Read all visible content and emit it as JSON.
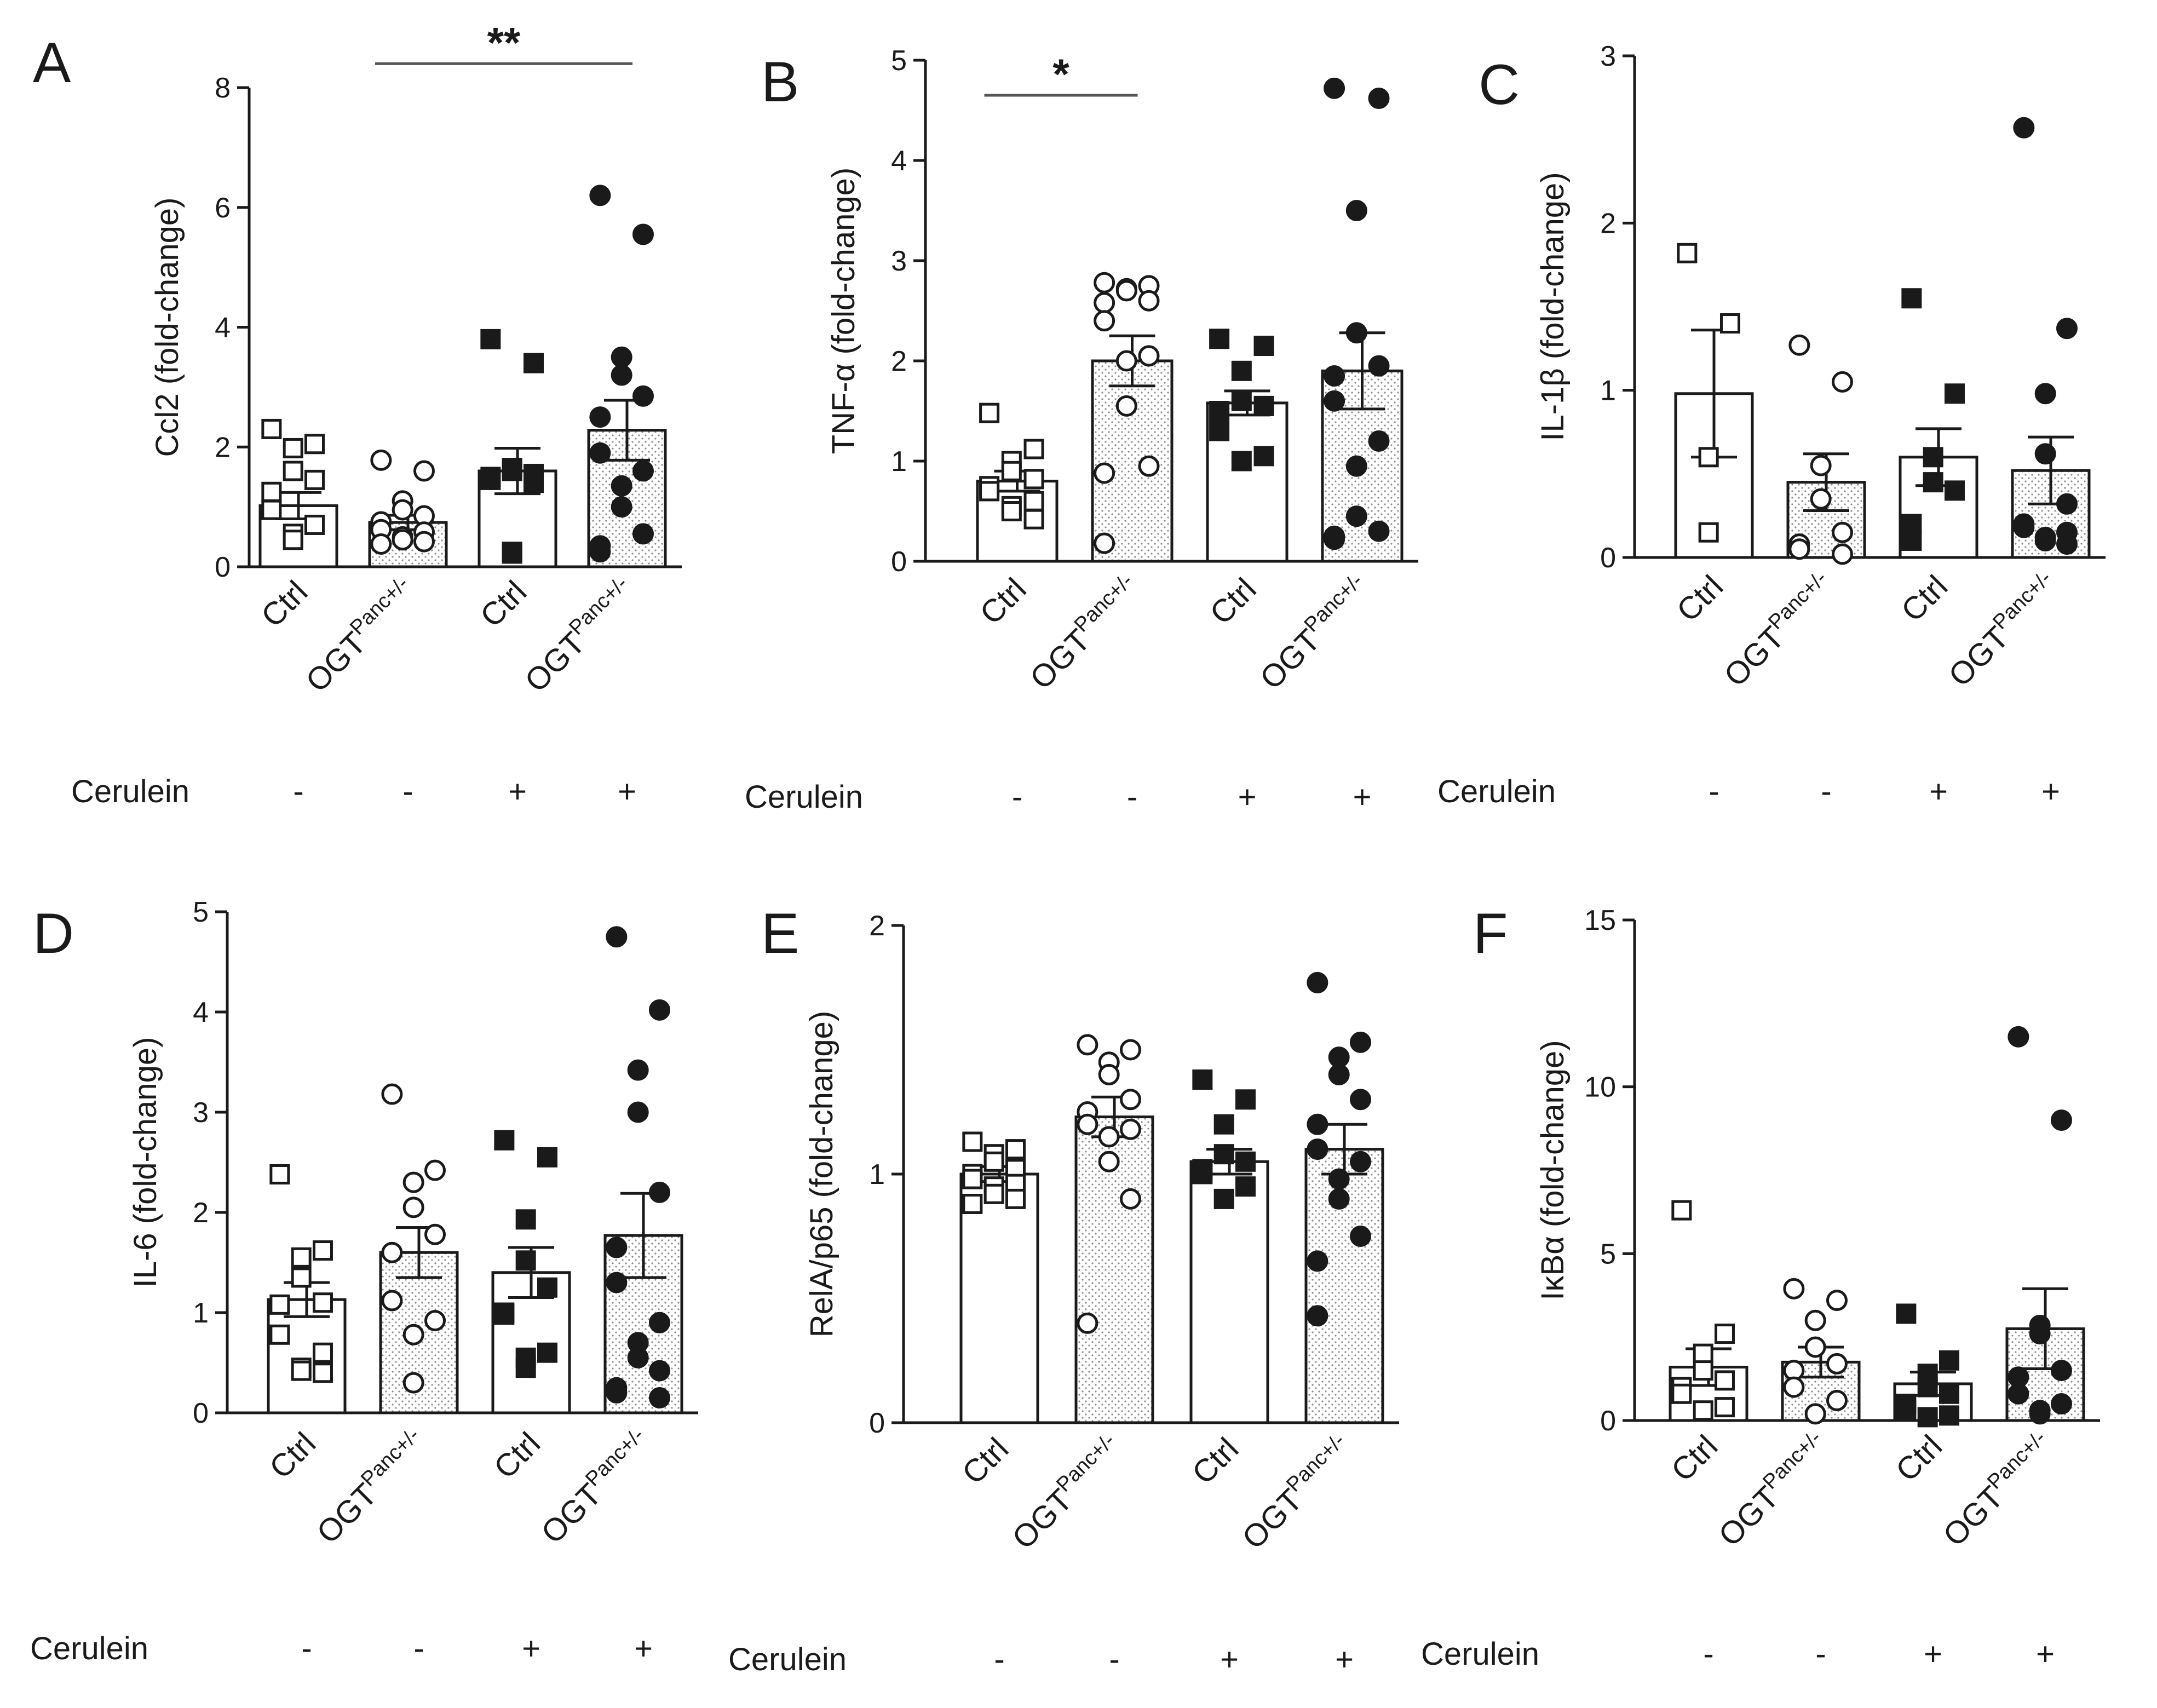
{
  "figure": {
    "cerulein_label": "Cerulein"
  },
  "colors": {
    "ink": "#1a1a1a",
    "bar_plain": "#ffffff",
    "bar_dotted": "#cfcfcf",
    "background": "#ffffff"
  },
  "chart_data": [
    {
      "id": "A",
      "type": "bar",
      "ylabel": "Ccl2 (fold-change)",
      "ylim": [
        0,
        8
      ],
      "yticks": [
        0,
        2,
        4,
        6,
        8
      ],
      "categories": [
        {
          "label": "Ctrl",
          "sup": "",
          "cerulein": "-"
        },
        {
          "label": "OGT",
          "sup": "Panc+/-",
          "cerulein": "-"
        },
        {
          "label": "Ctrl",
          "sup": "",
          "cerulein": "+"
        },
        {
          "label": "OGT",
          "sup": "Panc+/-",
          "cerulein": "+"
        }
      ],
      "values": [
        1.02,
        0.74,
        1.6,
        2.28
      ],
      "sem": [
        0.22,
        0.12,
        0.38,
        0.5
      ],
      "points": [
        [
          2.3,
          2.05,
          1.98,
          1.6,
          1.45,
          1.25,
          0.95,
          0.7,
          0.55,
          0.45
        ],
        [
          1.78,
          1.6,
          1.1,
          0.95,
          0.85,
          0.75,
          0.62,
          0.58,
          0.5,
          0.45,
          0.42,
          0.38
        ],
        [
          3.8,
          3.4,
          1.65,
          1.6,
          1.55,
          1.5,
          1.45,
          1.4,
          0.25,
          0.22
        ],
        [
          6.2,
          5.55,
          3.5,
          3.2,
          2.85,
          2.5,
          1.9,
          1.6,
          1.35,
          1.0,
          0.55,
          0.35,
          0.25
        ]
      ],
      "markers": [
        "square-open",
        "circle-open",
        "square-filled",
        "circle-filled"
      ],
      "significance": {
        "label": "**",
        "from": 1,
        "to": 3,
        "y": 8.4
      }
    },
    {
      "id": "B",
      "type": "bar",
      "ylabel": "TNF-α (fold-change)",
      "ylim": [
        0,
        5
      ],
      "yticks": [
        0,
        1,
        2,
        3,
        4,
        5
      ],
      "categories": [
        {
          "label": "Ctrl",
          "sup": "",
          "cerulein": "-"
        },
        {
          "label": "OGT",
          "sup": "Panc+/-",
          "cerulein": "-"
        },
        {
          "label": "Ctrl",
          "sup": "",
          "cerulein": "+"
        },
        {
          "label": "OGT",
          "sup": "Panc+/-",
          "cerulein": "+"
        }
      ],
      "values": [
        0.8,
        2.0,
        1.58,
        1.9
      ],
      "sem": [
        0.1,
        0.25,
        0.12,
        0.38
      ],
      "points": [
        [
          1.48,
          1.12,
          1.0,
          0.9,
          0.82,
          0.75,
          0.7,
          0.6,
          0.55,
          0.5,
          0.42
        ],
        [
          2.78,
          2.75,
          2.72,
          2.7,
          2.6,
          2.58,
          2.4,
          2.05,
          2.0,
          1.55,
          0.95,
          0.88,
          0.18
        ],
        [
          2.22,
          2.15,
          1.9,
          1.6,
          1.55,
          1.5,
          1.3,
          1.05,
          1.0
        ],
        [
          4.72,
          4.62,
          3.5,
          2.28,
          1.95,
          1.85,
          1.6,
          1.2,
          0.95,
          0.45,
          0.3,
          0.25,
          0.22
        ]
      ],
      "markers": [
        "square-open",
        "circle-open",
        "square-filled",
        "circle-filled"
      ],
      "significance": {
        "label": "*",
        "from": 0,
        "to": 1,
        "y": 4.65
      }
    },
    {
      "id": "C",
      "type": "bar",
      "ylabel": "IL-1β (fold-change)",
      "ylim": [
        0,
        3
      ],
      "yticks": [
        0,
        1,
        2,
        3
      ],
      "categories": [
        {
          "label": "Ctrl",
          "sup": "",
          "cerulein": "-"
        },
        {
          "label": "OGT",
          "sup": "Panc+/-",
          "cerulein": "-"
        },
        {
          "label": "Ctrl",
          "sup": "",
          "cerulein": "+"
        },
        {
          "label": "OGT",
          "sup": "Panc+/-",
          "cerulein": "+"
        }
      ],
      "values": [
        0.98,
        0.45,
        0.6,
        0.52
      ],
      "sem": [
        0.38,
        0.17,
        0.17,
        0.2
      ],
      "points": [
        [
          1.82,
          1.4,
          0.6,
          0.15
        ],
        [
          1.27,
          1.05,
          0.55,
          0.35,
          0.15,
          0.08,
          0.05,
          0.02
        ],
        [
          1.55,
          0.98,
          0.6,
          0.45,
          0.4,
          0.2,
          0.1
        ],
        [
          2.57,
          1.37,
          0.98,
          0.62,
          0.32,
          0.2,
          0.18,
          0.15,
          0.12,
          0.1,
          0.08
        ]
      ],
      "markers": [
        "square-open",
        "circle-open",
        "square-filled",
        "circle-filled"
      ]
    },
    {
      "id": "D",
      "type": "bar",
      "ylabel": "IL-6 (fold-change)",
      "ylim": [
        0,
        5
      ],
      "yticks": [
        0,
        1,
        2,
        3,
        4,
        5
      ],
      "categories": [
        {
          "label": "Ctrl",
          "sup": "",
          "cerulein": "-"
        },
        {
          "label": "OGT",
          "sup": "Panc+/-",
          "cerulein": "-"
        },
        {
          "label": "Ctrl",
          "sup": "",
          "cerulein": "+"
        },
        {
          "label": "OGT",
          "sup": "Panc+/-",
          "cerulein": "+"
        }
      ],
      "values": [
        1.13,
        1.6,
        1.4,
        1.77
      ],
      "sem": [
        0.17,
        0.25,
        0.25,
        0.42
      ],
      "points": [
        [
          2.38,
          1.62,
          1.55,
          1.35,
          1.1,
          1.08,
          0.78,
          0.6,
          0.45,
          0.42,
          0.4
        ],
        [
          3.18,
          2.42,
          2.3,
          2.05,
          1.78,
          1.6,
          1.12,
          0.92,
          0.78,
          0.3
        ],
        [
          2.72,
          2.55,
          1.93,
          1.52,
          1.25,
          1.0,
          0.98,
          0.6,
          0.55,
          0.45
        ],
        [
          4.75,
          4.02,
          3.42,
          3.0,
          2.2,
          1.65,
          1.3,
          0.9,
          0.7,
          0.55,
          0.42,
          0.25,
          0.2,
          0.15
        ]
      ],
      "markers": [
        "square-open",
        "circle-open",
        "square-filled",
        "circle-filled"
      ]
    },
    {
      "id": "E",
      "type": "bar",
      "ylabel": "RelA/p65 (fold-change)",
      "ylim": [
        0,
        2
      ],
      "yticks": [
        0,
        1,
        2
      ],
      "categories": [
        {
          "label": "Ctrl",
          "sup": "",
          "cerulein": "-"
        },
        {
          "label": "OGT",
          "sup": "Panc+/-",
          "cerulein": "-"
        },
        {
          "label": "Ctrl",
          "sup": "",
          "cerulein": "+"
        },
        {
          "label": "OGT",
          "sup": "Panc+/-",
          "cerulein": "+"
        }
      ],
      "values": [
        1.0,
        1.23,
        1.05,
        1.1
      ],
      "sem": [
        0.03,
        0.08,
        0.05,
        0.1
      ],
      "points": [
        [
          1.13,
          1.1,
          1.08,
          1.05,
          1.02,
          1.0,
          0.98,
          0.96,
          0.95,
          0.92,
          0.9,
          0.88
        ],
        [
          1.52,
          1.5,
          1.45,
          1.4,
          1.3,
          1.25,
          1.2,
          1.18,
          1.15,
          1.05,
          0.9,
          0.4
        ],
        [
          1.38,
          1.3,
          1.2,
          1.08,
          1.05,
          1.02,
          1.0,
          0.95,
          0.9
        ],
        [
          1.77,
          1.53,
          1.47,
          1.4,
          1.3,
          1.2,
          1.1,
          1.05,
          0.98,
          0.9,
          0.75,
          0.65,
          0.43
        ]
      ],
      "markers": [
        "square-open",
        "circle-open",
        "square-filled",
        "circle-filled"
      ]
    },
    {
      "id": "F",
      "type": "bar",
      "ylabel": "IκBα (fold-change)",
      "ylim": [
        0,
        15
      ],
      "yticks": [
        0,
        5,
        10,
        15
      ],
      "categories": [
        {
          "label": "Ctrl",
          "sup": "",
          "cerulein": "-"
        },
        {
          "label": "OGT",
          "sup": "Panc+/-",
          "cerulein": "-"
        },
        {
          "label": "Ctrl",
          "sup": "",
          "cerulein": "+"
        },
        {
          "label": "OGT",
          "sup": "Panc+/-",
          "cerulein": "+"
        }
      ],
      "values": [
        1.6,
        1.75,
        1.1,
        2.75
      ],
      "sem": [
        0.55,
        0.45,
        0.35,
        1.2
      ],
      "points": [
        [
          6.3,
          2.6,
          2.0,
          1.5,
          1.2,
          1.0,
          0.8,
          0.4,
          0.3
        ],
        [
          3.95,
          3.6,
          3.0,
          2.2,
          1.7,
          1.5,
          1.0,
          0.6,
          0.2
        ],
        [
          3.2,
          1.8,
          1.4,
          1.0,
          0.8,
          0.5,
          0.3,
          0.15,
          0.1
        ],
        [
          11.5,
          9.0,
          2.85,
          2.6,
          1.5,
          1.3,
          0.8,
          0.5,
          0.3,
          0.2
        ]
      ],
      "markers": [
        "square-open",
        "circle-open",
        "square-filled",
        "circle-filled"
      ]
    }
  ]
}
